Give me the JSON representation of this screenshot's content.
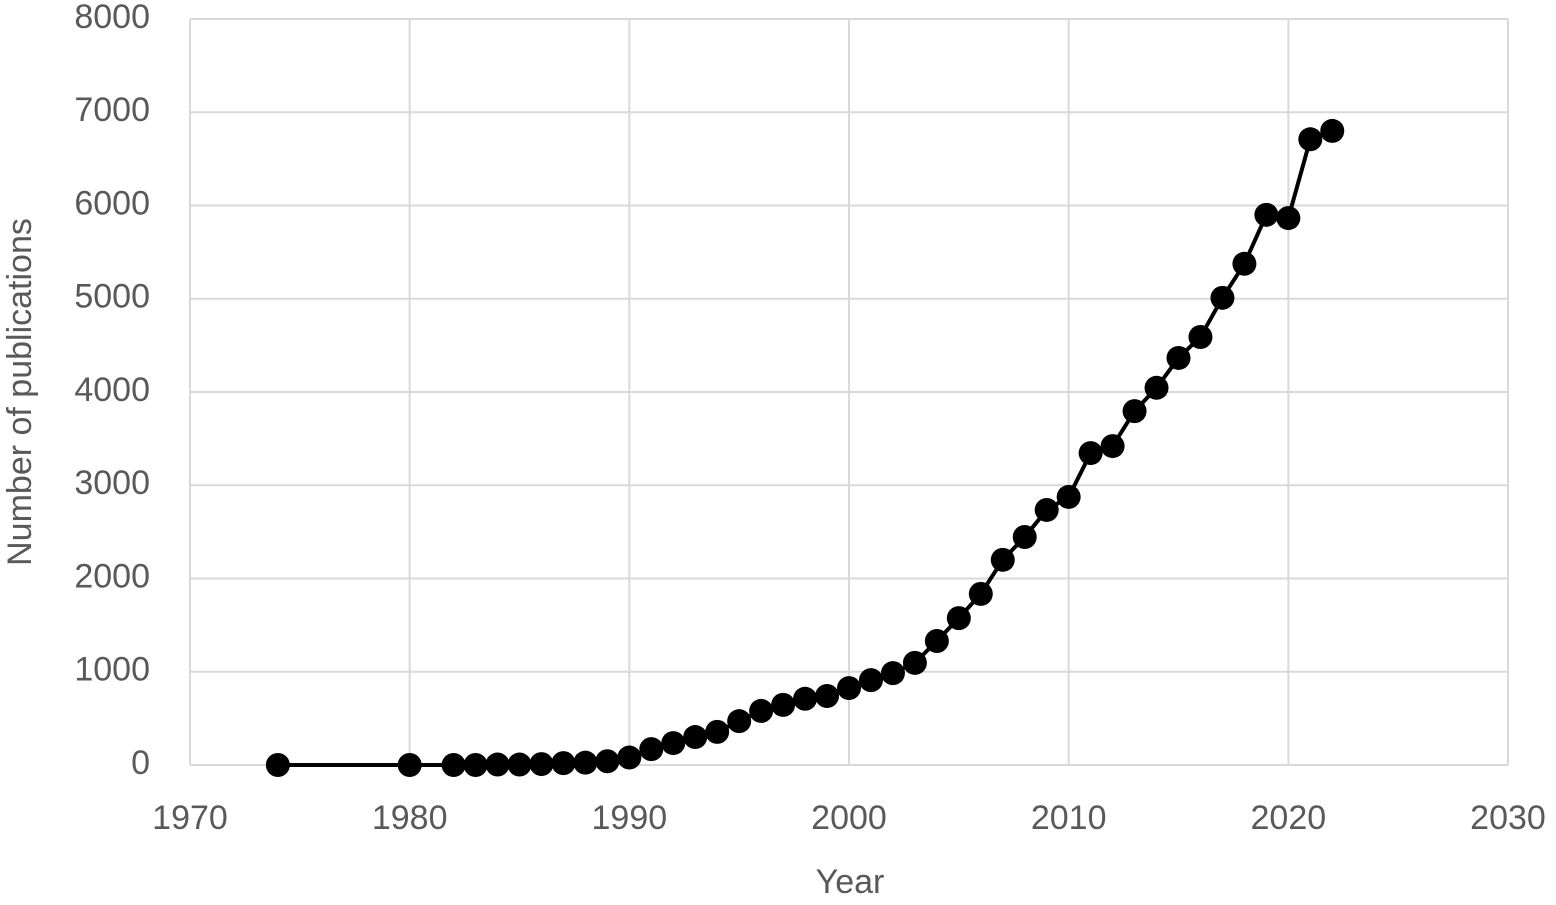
{
  "chart_data": {
    "type": "line",
    "xlabel": "Year",
    "ylabel": "Number of publications",
    "x": [
      1974,
      1980,
      1982,
      1983,
      1984,
      1985,
      1986,
      1987,
      1988,
      1989,
      1990,
      1991,
      1992,
      1993,
      1994,
      1995,
      1996,
      1997,
      1998,
      1999,
      2000,
      2001,
      2002,
      2003,
      2004,
      2005,
      2006,
      2007,
      2008,
      2009,
      2010,
      2011,
      2012,
      2013,
      2014,
      2015,
      2016,
      2017,
      2018,
      2019,
      2020,
      2021,
      2022
    ],
    "values": [
      0,
      0,
      0,
      0,
      5,
      5,
      10,
      20,
      25,
      40,
      80,
      170,
      235,
      300,
      355,
      470,
      580,
      645,
      710,
      740,
      825,
      910,
      985,
      1095,
      1330,
      1575,
      1835,
      2200,
      2445,
      2735,
      2875,
      3345,
      3420,
      3795,
      4045,
      4365,
      4590,
      5010,
      5375,
      5900,
      5865,
      6710,
      6800
    ],
    "color": "#000000",
    "xlim": [
      1970,
      2030
    ],
    "xticks": [
      1970,
      1980,
      1990,
      2000,
      2010,
      2020,
      2030
    ],
    "ylim": [
      0,
      8000
    ],
    "yticks": [
      0,
      1000,
      2000,
      3000,
      4000,
      5000,
      6000,
      7000,
      8000
    ],
    "grid": true
  }
}
